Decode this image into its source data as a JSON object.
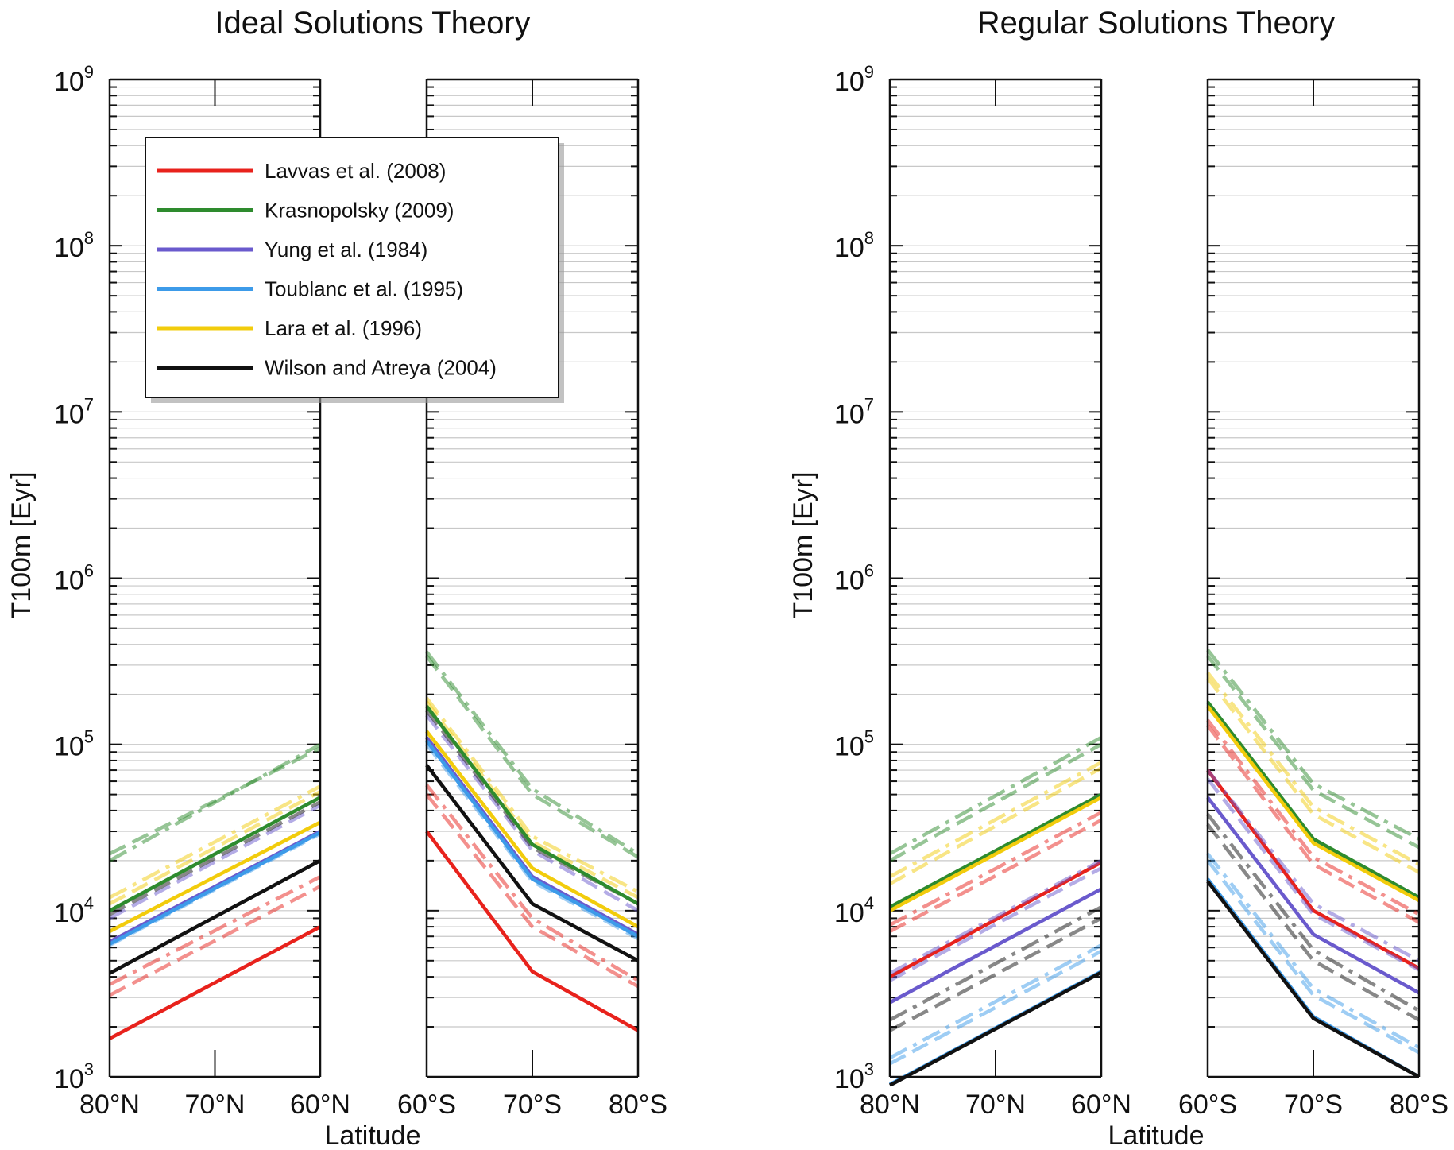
{
  "chart_data": [
    {
      "type": "line",
      "title": "Ideal Solutions Theory",
      "xlabel": "Latitude",
      "ylabel": "T100m [Eyr]",
      "yscale": "log",
      "ylim": [
        1000,
        1000000000
      ],
      "y_tick_labels": [
        {
          "base": "10",
          "exp": "3"
        },
        {
          "base": "10",
          "exp": "4"
        },
        {
          "base": "10",
          "exp": "5"
        },
        {
          "base": "10",
          "exp": "6"
        },
        {
          "base": "10",
          "exp": "7"
        },
        {
          "base": "10",
          "exp": "8"
        },
        {
          "base": "10",
          "exp": "9"
        }
      ],
      "x_tick_labels": [
        "80°N",
        "70°N",
        "60°N",
        "60°S",
        "70°S",
        "80°S"
      ],
      "grid": true,
      "legend": {
        "placement": "upper-left of left panel",
        "entries": [
          {
            "label": "Lavvas et al. (2008)",
            "color": "#e8221c"
          },
          {
            "label": "Krasnopolsky (2009)",
            "color": "#2e8b2e"
          },
          {
            "label": "Yung et al. (1984)",
            "color": "#6a5acd"
          },
          {
            "label": "Toublanc et al. (1995)",
            "color": "#3d9be9"
          },
          {
            "label": "Lara et al. (1996)",
            "color": "#f2cc0c"
          },
          {
            "label": "Wilson and Atreya (2004)",
            "color": "#111111"
          }
        ]
      },
      "series": [
        {
          "name": "Lavvas et al. (2008)",
          "color": "#e8221c",
          "north": [
            1700,
            8000
          ],
          "south": [
            30000,
            4300,
            1900
          ]
        },
        {
          "name": "Lavvas et al. (2008)",
          "color": "#e8221c",
          "style": "dashed",
          "north": [
            3100,
            14000
          ],
          "south": [
            50000,
            8000,
            3500
          ]
        },
        {
          "name": "Lavvas et al. (2008)",
          "color": "#e8221c",
          "style": "dashdot",
          "north": [
            3600,
            16000
          ],
          "south": [
            57000,
            9000,
            3800
          ]
        },
        {
          "name": "Krasnopolsky (2009)",
          "color": "#2e8b2e",
          "style": "dashdot",
          "north": [
            20000,
            100000
          ],
          "south": [
            360000,
            54000,
            22000
          ]
        },
        {
          "name": "Krasnopolsky (2009)",
          "color": "#2e8b2e",
          "style": "dashed",
          "north": [
            22000,
            95000
          ],
          "south": [
            340000,
            50000,
            21000
          ]
        },
        {
          "name": "Lara et al. (1996)",
          "color": "#f2cc0c",
          "style": "dashdot",
          "north": [
            12000,
            56000
          ],
          "south": [
            190000,
            28000,
            13000
          ]
        },
        {
          "name": "Lara et al. (1996)",
          "color": "#f2cc0c",
          "style": "dashed",
          "north": [
            11000,
            52000
          ],
          "south": [
            180000,
            26000,
            12000
          ]
        },
        {
          "name": "Yung et al. (1984)",
          "color": "#6a5acd",
          "style": "dashed",
          "north": [
            9000,
            43000
          ],
          "south": [
            150000,
            23000,
            10000
          ]
        },
        {
          "name": "Toublanc et al. (1995)",
          "color": "#3d9be9",
          "style": "dashed",
          "north": [
            6200,
            29000
          ],
          "south": [
            100000,
            15000,
            6800
          ]
        },
        {
          "name": "Wilson and Atreya (2004)",
          "color": "#111111",
          "style": "dashed",
          "north": [
            9500,
            45000
          ],
          "south": [
            160000,
            24000,
            11000
          ]
        },
        {
          "name": "Krasnopolsky (2009)",
          "color": "#2e8b2e",
          "north": [
            10000,
            48000
          ],
          "south": [
            170000,
            25000,
            11000
          ]
        },
        {
          "name": "Lara et al. (1996)",
          "color": "#f2cc0c",
          "north": [
            7500,
            34000
          ],
          "south": [
            120000,
            18000,
            8000
          ]
        },
        {
          "name": "Yung et al. (1984)",
          "color": "#6a5acd",
          "north": [
            6500,
            30000
          ],
          "south": [
            110000,
            16000,
            7200
          ]
        },
        {
          "name": "Toublanc et al. (1995)",
          "color": "#3d9be9",
          "north": [
            6300,
            29500
          ],
          "south": [
            105000,
            15500,
            7000
          ]
        },
        {
          "name": "Wilson and Atreya (2004)",
          "color": "#111111",
          "north": [
            4200,
            20000
          ],
          "south": [
            75000,
            11000,
            5000
          ]
        }
      ]
    },
    {
      "type": "line",
      "title": "Regular Solutions Theory",
      "xlabel": "Latitude",
      "ylabel": "T100m [Eyr]",
      "yscale": "log",
      "ylim": [
        1000,
        1000000000
      ],
      "y_tick_labels": [
        {
          "base": "10",
          "exp": "3"
        },
        {
          "base": "10",
          "exp": "4"
        },
        {
          "base": "10",
          "exp": "5"
        },
        {
          "base": "10",
          "exp": "6"
        },
        {
          "base": "10",
          "exp": "7"
        },
        {
          "base": "10",
          "exp": "8"
        },
        {
          "base": "10",
          "exp": "9"
        }
      ],
      "x_tick_labels": [
        "80°N",
        "70°N",
        "60°N",
        "60°S",
        "70°S",
        "80°S"
      ],
      "grid": true,
      "series": [
        {
          "name": "Lavvas et al. (2008)",
          "color": "#e8221c",
          "north": [
            4000,
            19500
          ],
          "south": [
            70000,
            10000,
            4500
          ]
        },
        {
          "name": "Lavvas et al. (2008)",
          "color": "#e8221c",
          "style": "dashed",
          "north": [
            7500,
            35000
          ],
          "south": [
            130000,
            19000,
            8500
          ]
        },
        {
          "name": "Lavvas et al. (2008)",
          "color": "#e8221c",
          "style": "dashdot",
          "north": [
            8200,
            39000
          ],
          "south": [
            140000,
            21000,
            9500
          ]
        },
        {
          "name": "Krasnopolsky (2009)",
          "color": "#2e8b2e",
          "style": "dashdot",
          "north": [
            22000,
            110000
          ],
          "south": [
            370000,
            58000,
            27000
          ]
        },
        {
          "name": "Krasnopolsky (2009)",
          "color": "#2e8b2e",
          "style": "dashed",
          "north": [
            20000,
            100000
          ],
          "south": [
            340000,
            53000,
            24000
          ]
        },
        {
          "name": "Lara et al. (1996)",
          "color": "#f2cc0c",
          "style": "dashdot",
          "north": [
            16000,
            78000
          ],
          "south": [
            270000,
            42000,
            19000
          ]
        },
        {
          "name": "Lara et al. (1996)",
          "color": "#f2cc0c",
          "style": "dashed",
          "north": [
            14500,
            72000
          ],
          "south": [
            250000,
            38000,
            17000
          ]
        },
        {
          "name": "Yung et al. (1984)",
          "color": "#6a5acd",
          "style": "dashdot",
          "north": [
            4200,
            20000
          ],
          "south": [
            70000,
            11000,
            5000
          ]
        },
        {
          "name": "Yung et al. (1984)",
          "color": "#6a5acd",
          "style": "dashed",
          "north": [
            3800,
            18000
          ],
          "south": [
            62000,
            9500,
            4400
          ]
        },
        {
          "name": "Wilson and Atreya (2004)",
          "color": "#111111",
          "style": "dashdot",
          "north": [
            2200,
            10500
          ],
          "south": [
            38000,
            5800,
            2500
          ]
        },
        {
          "name": "Wilson and Atreya (2004)",
          "color": "#111111",
          "style": "dashed",
          "north": [
            1900,
            9000
          ],
          "south": [
            33000,
            5000,
            2200
          ]
        },
        {
          "name": "Toublanc et al. (1995)",
          "color": "#3d9be9",
          "style": "dashdot",
          "north": [
            1300,
            6200
          ],
          "south": [
            22000,
            3400,
            1500
          ]
        },
        {
          "name": "Toublanc et al. (1995)",
          "color": "#3d9be9",
          "style": "dashed",
          "north": [
            1200,
            5700
          ],
          "south": [
            20000,
            3100,
            1400
          ]
        },
        {
          "name": "Krasnopolsky (2009)",
          "color": "#2e8b2e",
          "north": [
            10500,
            50000
          ],
          "south": [
            180000,
            27000,
            12000
          ]
        },
        {
          "name": "Lara et al. (1996)",
          "color": "#f2cc0c",
          "north": [
            10000,
            48000
          ],
          "south": [
            170000,
            25500,
            11500
          ]
        },
        {
          "name": "Yung et al. (1984)",
          "color": "#6a5acd",
          "north": [
            2800,
            13500
          ],
          "south": [
            48000,
            7200,
            3200
          ]
        },
        {
          "name": "Toublanc et al. (1995)",
          "color": "#3d9be9",
          "north": [
            900,
            4300
          ],
          "south": [
            15500,
            2300,
            1000
          ]
        },
        {
          "name": "Wilson and Atreya (2004)",
          "color": "#111111",
          "north": [
            890,
            4250
          ],
          "south": [
            15000,
            2250,
            1000
          ]
        }
      ]
    }
  ]
}
